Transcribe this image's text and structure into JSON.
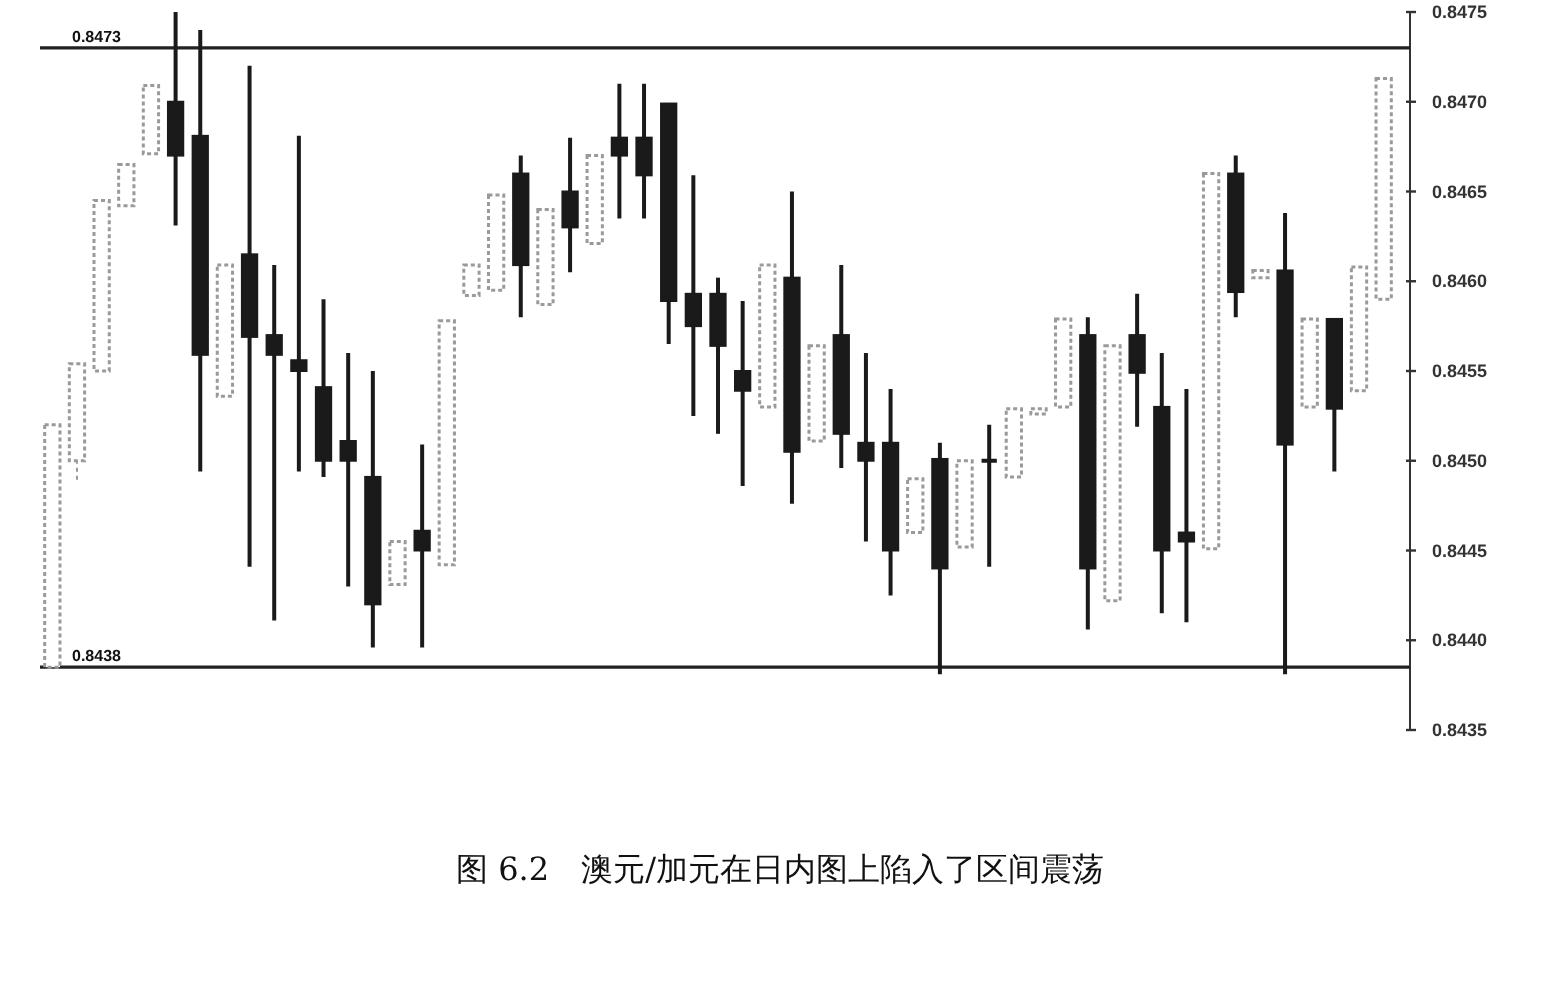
{
  "chart_data": {
    "type": "candlestick",
    "title": "图 6.2　澳元/加元在日内图上陷入了区间震荡",
    "categories": [
      null,
      null,
      null,
      null,
      null,
      null,
      null,
      null,
      null,
      null,
      null,
      null,
      null,
      null,
      null,
      null,
      null,
      null,
      null,
      null,
      null,
      null,
      null,
      null,
      null,
      null,
      null,
      null,
      null,
      null,
      null,
      null,
      null,
      null,
      null,
      null,
      null,
      null,
      null,
      null,
      null,
      null,
      null,
      null,
      null,
      null,
      null,
      null,
      null,
      null,
      null,
      null,
      null,
      null,
      null
    ],
    "ohlc": [
      [
        0.84385,
        0.8452,
        0.84385,
        0.8452
      ],
      [
        0.845,
        0.84554,
        0.84489,
        0.84554
      ],
      [
        0.8455,
        0.84645,
        0.8455,
        0.84645
      ],
      [
        0.84642,
        0.84665,
        0.84642,
        0.84665
      ],
      [
        0.84671,
        0.84709,
        0.84671,
        0.84709
      ],
      [
        0.847,
        0.8475,
        0.84631,
        0.8467
      ],
      [
        0.84681,
        0.8474,
        0.84494,
        0.84559
      ],
      [
        0.84536,
        0.84609,
        0.84536,
        0.84609
      ],
      [
        0.84615,
        0.8472,
        0.84441,
        0.84569
      ],
      [
        0.8457,
        0.84609,
        0.84411,
        0.84559
      ],
      [
        0.84556,
        0.84681,
        0.84494,
        0.8455
      ],
      [
        0.84541,
        0.8459,
        0.84491,
        0.845
      ],
      [
        0.84511,
        0.8456,
        0.8443,
        0.845
      ],
      [
        0.84491,
        0.8455,
        0.84396,
        0.8442
      ],
      [
        0.84431,
        0.84455,
        0.84431,
        0.84455
      ],
      [
        0.84461,
        0.84509,
        0.84396,
        0.8445
      ],
      [
        0.84442,
        0.84578,
        0.84442,
        0.84578
      ],
      [
        0.84592,
        0.84609,
        0.84592,
        0.84609
      ],
      [
        0.84595,
        0.84648,
        0.84595,
        0.84648
      ],
      [
        0.8466,
        0.8467,
        0.8458,
        0.84609
      ],
      [
        0.84587,
        0.8464,
        0.84587,
        0.8464
      ],
      [
        0.8465,
        0.8468,
        0.84605,
        0.8463
      ],
      [
        0.84621,
        0.8467,
        0.84621,
        0.8467
      ],
      [
        0.8468,
        0.8471,
        0.84635,
        0.8467
      ],
      [
        0.8468,
        0.8471,
        0.84635,
        0.84659
      ],
      [
        0.84699,
        0.84699,
        0.84565,
        0.84589
      ],
      [
        0.84593,
        0.84659,
        0.84525,
        0.84575
      ],
      [
        0.84593,
        0.84602,
        0.84515,
        0.84564
      ],
      [
        0.8455,
        0.84589,
        0.84486,
        0.84539
      ],
      [
        0.8453,
        0.84609,
        0.8453,
        0.84609
      ],
      [
        0.84602,
        0.8465,
        0.84476,
        0.84505
      ],
      [
        0.84511,
        0.84564,
        0.84511,
        0.84564
      ],
      [
        0.8457,
        0.84609,
        0.84496,
        0.84515
      ],
      [
        0.8451,
        0.8456,
        0.84455,
        0.845
      ],
      [
        0.8451,
        0.8454,
        0.84425,
        0.8445
      ],
      [
        0.8446,
        0.8449,
        0.8446,
        0.8449
      ],
      [
        0.84501,
        0.8451,
        0.84381,
        0.8444
      ],
      [
        0.84452,
        0.845,
        0.84452,
        0.845
      ],
      [
        0.845,
        0.8452,
        0.84441,
        0.845
      ],
      [
        0.84491,
        0.84529,
        0.84491,
        0.84529
      ],
      [
        0.84526,
        0.84529,
        0.84526,
        0.84529
      ],
      [
        0.8453,
        0.84579,
        0.8453,
        0.84579
      ],
      [
        0.8457,
        0.8458,
        0.84406,
        0.8444
      ],
      [
        0.84422,
        0.84564,
        0.84422,
        0.84564
      ],
      [
        0.8457,
        0.84593,
        0.84519,
        0.84549
      ],
      [
        0.8453,
        0.8456,
        0.84415,
        0.8445
      ],
      [
        0.8446,
        0.8454,
        0.8441,
        0.84455
      ],
      [
        0.84451,
        0.8466,
        0.84451,
        0.8466
      ],
      [
        0.8466,
        0.8467,
        0.8458,
        0.84594
      ],
      [
        0.84602,
        0.84606,
        0.84602,
        0.84606
      ],
      [
        0.84606,
        0.84638,
        0.84381,
        0.84509
      ],
      [
        0.8453,
        0.84579,
        0.8453,
        0.84579
      ],
      [
        0.84579,
        0.84579,
        0.84494,
        0.84529
      ],
      [
        0.84539,
        0.84608,
        0.84539,
        0.84608
      ],
      [
        0.8459,
        0.84713,
        0.8459,
        0.84713
      ]
    ],
    "colors": [
      "#9a9a9a",
      "#9a9a9a",
      "#9a9a9a",
      "#9a9a9a",
      "#9a9a9a",
      "#1a1a1a",
      "#1a1a1a",
      "#9a9a9a",
      "#1a1a1a",
      "#1a1a1a",
      "#1a1a1a",
      "#1a1a1a",
      "#1a1a1a",
      "#1a1a1a",
      "#9a9a9a",
      "#1a1a1a",
      "#9a9a9a",
      "#9a9a9a",
      "#9a9a9a",
      "#1a1a1a",
      "#9a9a9a",
      "#1a1a1a",
      "#9a9a9a",
      "#1a1a1a",
      "#1a1a1a",
      "#1a1a1a",
      "#1a1a1a",
      "#1a1a1a",
      "#1a1a1a",
      "#9a9a9a",
      "#1a1a1a",
      "#9a9a9a",
      "#1a1a1a",
      "#1a1a1a",
      "#1a1a1a",
      "#9a9a9a",
      "#1a1a1a",
      "#9a9a9a",
      "#1a1a1a",
      "#9a9a9a",
      "#9a9a9a",
      "#9a9a9a",
      "#1a1a1a",
      "#9a9a9a",
      "#1a1a1a",
      "#1a1a1a",
      "#1a1a1a",
      "#9a9a9a",
      "#1a1a1a",
      "#9a9a9a",
      "#1a1a1a",
      "#9a9a9a",
      "#1a1a1a",
      "#9a9a9a",
      "#9a9a9a"
    ],
    "ylim": [
      0.8435,
      0.8475
    ],
    "yticks": [
      0.8435,
      {
        "value": 0.844,
        "label": "0.8440"
      },
      0.8445,
      {
        "value": 0.845,
        "label": "0.8450"
      },
      0.8455,
      {
        "value": 0.846,
        "label": "0.8460"
      },
      0.8465,
      {
        "value": 0.847,
        "label": "0.8470"
      },
      0.8475
    ],
    "ref_lines": [
      {
        "axis": "y",
        "value": 0.8473,
        "label": "0.8473"
      },
      {
        "axis": "y",
        "value": 0.84385,
        "label": "0.8438"
      }
    ],
    "tick_labels": "y"
  }
}
